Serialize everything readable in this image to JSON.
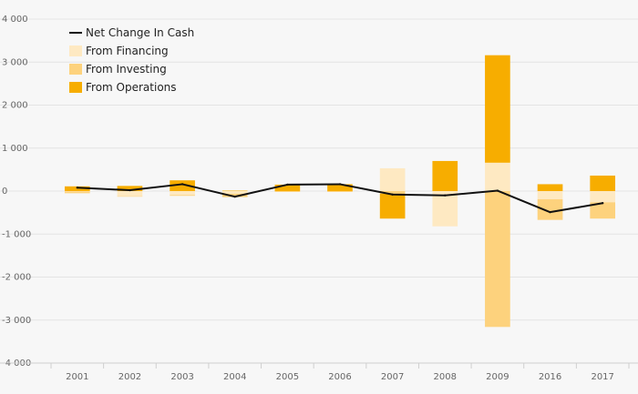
{
  "chart_data": {
    "type": "bar",
    "stacked": true,
    "categories": [
      "2001",
      "2002",
      "2003",
      "2004",
      "2005",
      "2006",
      "2007",
      "2008",
      "2009",
      "2016",
      "2017"
    ],
    "series": [
      {
        "name": "From Financing",
        "kind": "bar",
        "color": "#fee9c2",
        "values": [
          -10,
          -120,
          -90,
          -60,
          0,
          0,
          530,
          -820,
          660,
          -190,
          -260
        ]
      },
      {
        "name": "From Investing",
        "kind": "bar",
        "color": "#fdd27d",
        "values": [
          -40,
          -10,
          -20,
          -80,
          -20,
          -20,
          -60,
          0,
          -3160,
          -480,
          -380
        ]
      },
      {
        "name": "From Operations",
        "kind": "bar",
        "color": "#f7ad00",
        "values": [
          110,
          120,
          250,
          10,
          150,
          160,
          -580,
          700,
          2500,
          160,
          360
        ]
      },
      {
        "name": "Net Change In Cash",
        "kind": "line",
        "color": "#111111",
        "values": [
          80,
          20,
          160,
          -130,
          150,
          160,
          -80,
          -100,
          10,
          -490,
          -280
        ]
      }
    ],
    "ylim": [
      -4000,
      4000
    ],
    "yticks": [
      4000,
      3000,
      2000,
      1000,
      0,
      -1000,
      -2000,
      -3000,
      -4000
    ],
    "ytick_labels": [
      "4 000",
      "3 000",
      "2 000",
      "1 000",
      "0",
      "-1 000",
      "-2 000",
      "-3 000",
      "-4 000"
    ],
    "grid": true,
    "legend_position": "top-left",
    "legend_order": [
      "Net Change In Cash",
      "From Financing",
      "From Investing",
      "From Operations"
    ]
  }
}
